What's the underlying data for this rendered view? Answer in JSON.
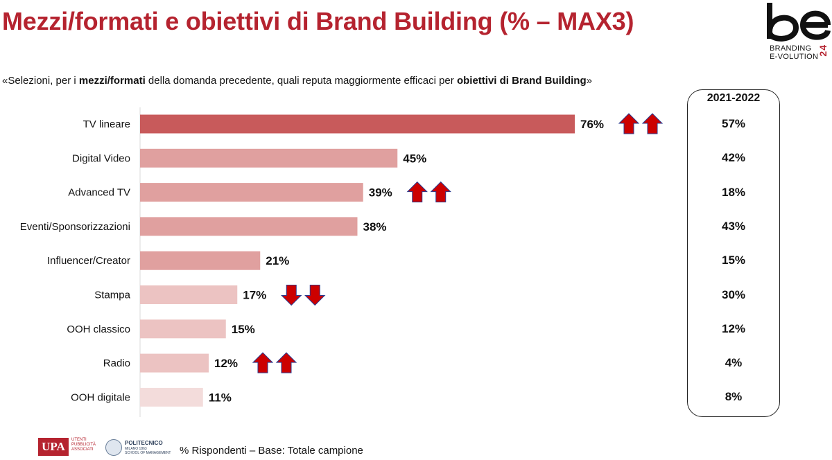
{
  "header": {
    "title": "Mezzi/formati e obiettivi di Brand Building (% – MAX3)",
    "subtitle_parts": [
      {
        "text": "«Selezioni, per i ",
        "bold": false
      },
      {
        "text": "mezzi/formati",
        "bold": true
      },
      {
        "text": " della domanda precedente, quali reputa maggiormente efficaci per ",
        "bold": false
      },
      {
        "text": "obiettivi di Brand Building",
        "bold": true
      },
      {
        "text": "»",
        "bold": false
      }
    ]
  },
  "logo": {
    "mark": "be",
    "line1": "BRANDING",
    "line2": "E-VOLUTION",
    "number": "24"
  },
  "chart_data": {
    "type": "bar",
    "orientation": "horizontal",
    "unit": "%",
    "xlim": [
      0,
      100
    ],
    "categories": [
      "TV lineare",
      "Digital Video",
      "Advanced TV",
      "Eventi/Sponsorizzazioni",
      "Influencer/Creator",
      "Stampa",
      "OOH classico",
      "Radio",
      "OOH digitale"
    ],
    "values": [
      76,
      45,
      39,
      38,
      21,
      17,
      15,
      12,
      11
    ],
    "value_labels": [
      "76%",
      "45%",
      "39%",
      "38%",
      "21%",
      "17%",
      "15%",
      "12%",
      "11%"
    ],
    "bar_colors": [
      "#c85a5b",
      "#e0a09f",
      "#e0a09f",
      "#e0a09f",
      "#e0a09f",
      "#ecc3c2",
      "#ecc3c2",
      "#ecc3c2",
      "#f3dcdb"
    ],
    "trend": [
      "up",
      "none",
      "up",
      "none",
      "none",
      "down",
      "none",
      "up",
      "none"
    ],
    "arrow_color": "#cc0000",
    "arrow_outline": "#2a3b8f",
    "comparison": {
      "title": "2021-2022",
      "values": [
        57,
        42,
        18,
        43,
        15,
        30,
        12,
        4,
        8
      ],
      "labels": [
        "57%",
        "42%",
        "18%",
        "43%",
        "15%",
        "30%",
        "12%",
        "4%",
        "8%"
      ]
    }
  },
  "footer": {
    "note": "% Rispondenti – Base: Totale campione",
    "upa_mark": "UPA",
    "upa_text": [
      "UTENTI",
      "PUBBLICITÀ",
      "ASSOCIATI"
    ],
    "poli_name": "POLITECNICO",
    "poli_sub": "MILANO 1863",
    "poli_school": "SCHOOL OF MANAGEMENT"
  },
  "colors": {
    "title": "#b5232f",
    "accent": "#b5232f"
  }
}
